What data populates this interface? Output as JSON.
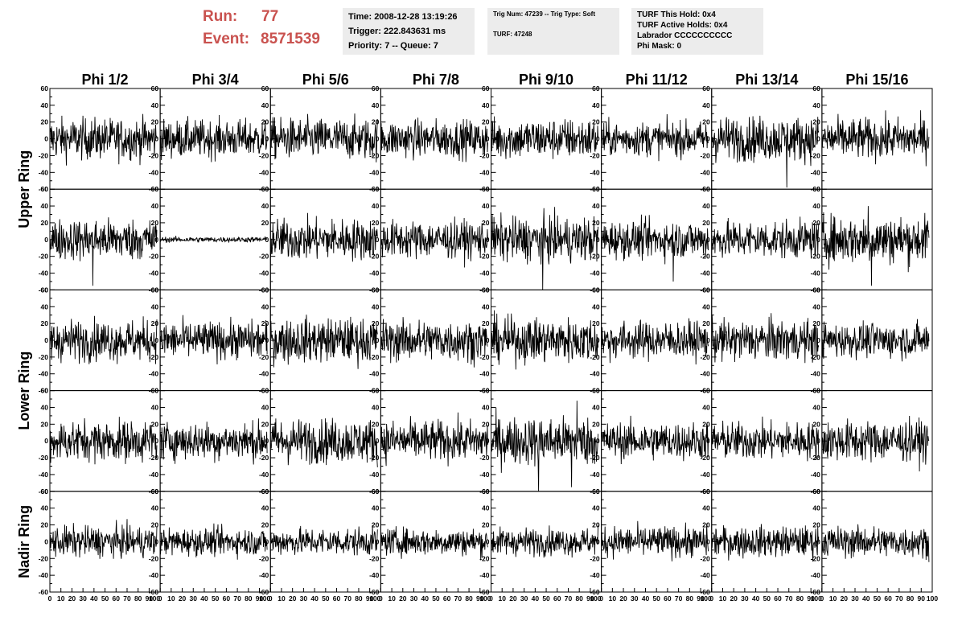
{
  "header": {
    "run_label": "Run:",
    "run_value": "77",
    "event_label": "Event:",
    "event_value": "8571539",
    "time_line": "Time: 2008-12-28 13:19:26",
    "trigger_line": "Trigger: 222.843631 ms",
    "priority_line": "Priority: 7 -- Queue: 7",
    "trig_num_line": "Trig Num: 47239 -- Trig Type: Soft",
    "turf_line": "TURF: 47248",
    "turf_hold_line": "TURF This Hold: 0x4",
    "turf_active_line": "TURF Active Holds: 0x4",
    "labrador_line": "Labrador CCCCCCCCCC",
    "phi_mask_line": "Phi Mask: 0",
    "accent_color": "#c9524f",
    "panel_color": "#ececec"
  },
  "chart_data": {
    "type": "line",
    "columns": [
      "Phi 1/2",
      "Phi 3/4",
      "Phi 5/6",
      "Phi 7/8",
      "Phi 9/10",
      "Phi 11/12",
      "Phi 13/14",
      "Phi 15/16"
    ],
    "row_labels": [
      {
        "label": "Upper Ring",
        "rows": [
          0,
          1
        ]
      },
      {
        "label": "Lower Ring",
        "rows": [
          2,
          3
        ]
      },
      {
        "label": "Nadir Ring",
        "rows": [
          4
        ]
      }
    ],
    "rows": 5,
    "xlim": [
      0,
      100
    ],
    "ylim": [
      -60,
      60
    ],
    "x_tick_labels": [
      "0",
      "10",
      "20",
      "30",
      "40",
      "50",
      "60",
      "70",
      "80",
      "90",
      "100"
    ],
    "y_tick_labels": [
      "-60",
      "-40",
      "-20",
      "0",
      "20",
      "40",
      "60"
    ],
    "samples_per_trace": 260,
    "trace_x_end": 97,
    "trace_rms": [
      [
        12,
        11,
        12,
        11,
        12,
        10,
        13,
        12
      ],
      [
        12,
        1.6,
        12,
        11,
        13,
        11,
        11,
        14
      ],
      [
        12,
        11,
        13,
        12,
        13,
        11,
        12,
        10
      ],
      [
        12,
        11,
        13,
        12,
        14,
        11,
        11,
        12
      ],
      [
        9,
        8,
        8,
        8,
        8,
        9,
        9,
        9
      ]
    ],
    "notable_spikes": [
      {
        "row": 0,
        "col": 6,
        "x": 68,
        "y": -58
      },
      {
        "row": 1,
        "col": 0,
        "x": 39,
        "y": -55
      },
      {
        "row": 1,
        "col": 4,
        "x": 47,
        "y": -60
      },
      {
        "row": 1,
        "col": 5,
        "x": 65,
        "y": -50
      },
      {
        "row": 1,
        "col": 7,
        "x": 42,
        "y": 40
      },
      {
        "row": 1,
        "col": 7,
        "x": 45,
        "y": -55
      },
      {
        "row": 3,
        "col": 4,
        "x": 43,
        "y": -60
      },
      {
        "row": 3,
        "col": 4,
        "x": 73,
        "y": -55
      },
      {
        "row": 3,
        "col": 4,
        "x": 78,
        "y": 48
      }
    ],
    "grid": false,
    "line_color": "#000000"
  }
}
